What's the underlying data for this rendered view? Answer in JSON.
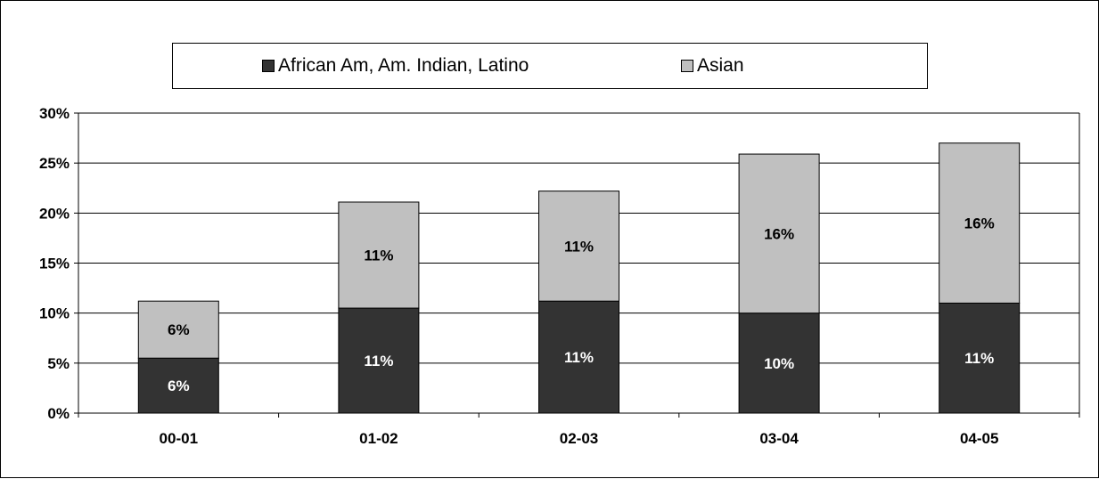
{
  "chart_data": {
    "type": "bar",
    "stacked": true,
    "categories": [
      "00-01",
      "01-02",
      "02-03",
      "03-04",
      "04-05"
    ],
    "series": [
      {
        "name": "African Am, Am. Indian, Latino",
        "values": [
          5.5,
          10.5,
          11.2,
          10.0,
          11.0
        ],
        "labels": [
          "6%",
          "11%",
          "11%",
          "10%",
          "11%"
        ],
        "color": "#333333",
        "label_color": "#ffffff"
      },
      {
        "name": "Asian",
        "values": [
          5.7,
          10.6,
          11.0,
          15.9,
          16.0
        ],
        "labels": [
          "6%",
          "11%",
          "11%",
          "16%",
          "16%"
        ],
        "color": "#c0c0c0",
        "label_color": "#000000"
      }
    ],
    "yticks": [
      "0%",
      "5%",
      "10%",
      "15%",
      "20%",
      "25%",
      "30%"
    ],
    "ylim": [
      0,
      30
    ],
    "ytick_step": 5,
    "grid": true,
    "legend": "top"
  }
}
